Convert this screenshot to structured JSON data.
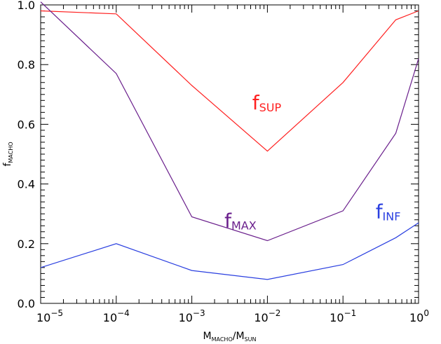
{
  "chart_data": {
    "type": "line",
    "x_scale": "log",
    "xlim": [
      1e-05,
      1
    ],
    "ylim": [
      0.0,
      1.0
    ],
    "xlabel": {
      "main": "M",
      "sub1": "MACHO",
      "slash": "/M",
      "sub2": "SUN"
    },
    "ylabel": {
      "main": "f",
      "sub": "MACHO"
    },
    "x_ticks": [
      {
        "value": 1e-05,
        "base": "10",
        "exp": "−5"
      },
      {
        "value": 0.0001,
        "base": "10",
        "exp": "−4"
      },
      {
        "value": 0.001,
        "base": "10",
        "exp": "−3"
      },
      {
        "value": 0.01,
        "base": "10",
        "exp": "−2"
      },
      {
        "value": 0.1,
        "base": "10",
        "exp": "−1"
      },
      {
        "value": 1,
        "base": "10",
        "exp": "0"
      }
    ],
    "y_ticks": [
      {
        "value": 0.0,
        "label": "0.0"
      },
      {
        "value": 0.2,
        "label": "0.2"
      },
      {
        "value": 0.4,
        "label": "0.4"
      },
      {
        "value": 0.6,
        "label": "0.6"
      },
      {
        "value": 0.8,
        "label": "0.8"
      },
      {
        "value": 1.0,
        "label": "1.0"
      }
    ],
    "series": [
      {
        "name": "f_SUP",
        "label_main": "f",
        "label_sub": "SUP",
        "color": "#ff2020",
        "label_at": {
          "x": 0.0063,
          "y": 0.65
        },
        "x": [
          1e-05,
          0.0001,
          0.001,
          0.01,
          0.1,
          0.5,
          1
        ],
        "y": [
          0.98,
          0.97,
          0.73,
          0.51,
          0.74,
          0.95,
          0.98
        ]
      },
      {
        "name": "f_MAX",
        "label_main": "f",
        "label_sub": "MAX",
        "color": "#6a1f8c",
        "label_at": {
          "x": 0.0027,
          "y": 0.255
        },
        "x": [
          1e-05,
          0.0001,
          0.001,
          0.01,
          0.1,
          0.5,
          1
        ],
        "y": [
          1.01,
          0.77,
          0.29,
          0.21,
          0.31,
          0.57,
          0.82
        ]
      },
      {
        "name": "f_INF",
        "label_main": "f",
        "label_sub": "INF",
        "color": "#2a3fe0",
        "label_at": {
          "x": 0.27,
          "y": 0.285
        },
        "x": [
          1e-05,
          0.0001,
          0.001,
          0.01,
          0.1,
          0.5,
          1
        ],
        "y": [
          0.12,
          0.2,
          0.11,
          0.08,
          0.13,
          0.22,
          0.27
        ]
      }
    ]
  }
}
